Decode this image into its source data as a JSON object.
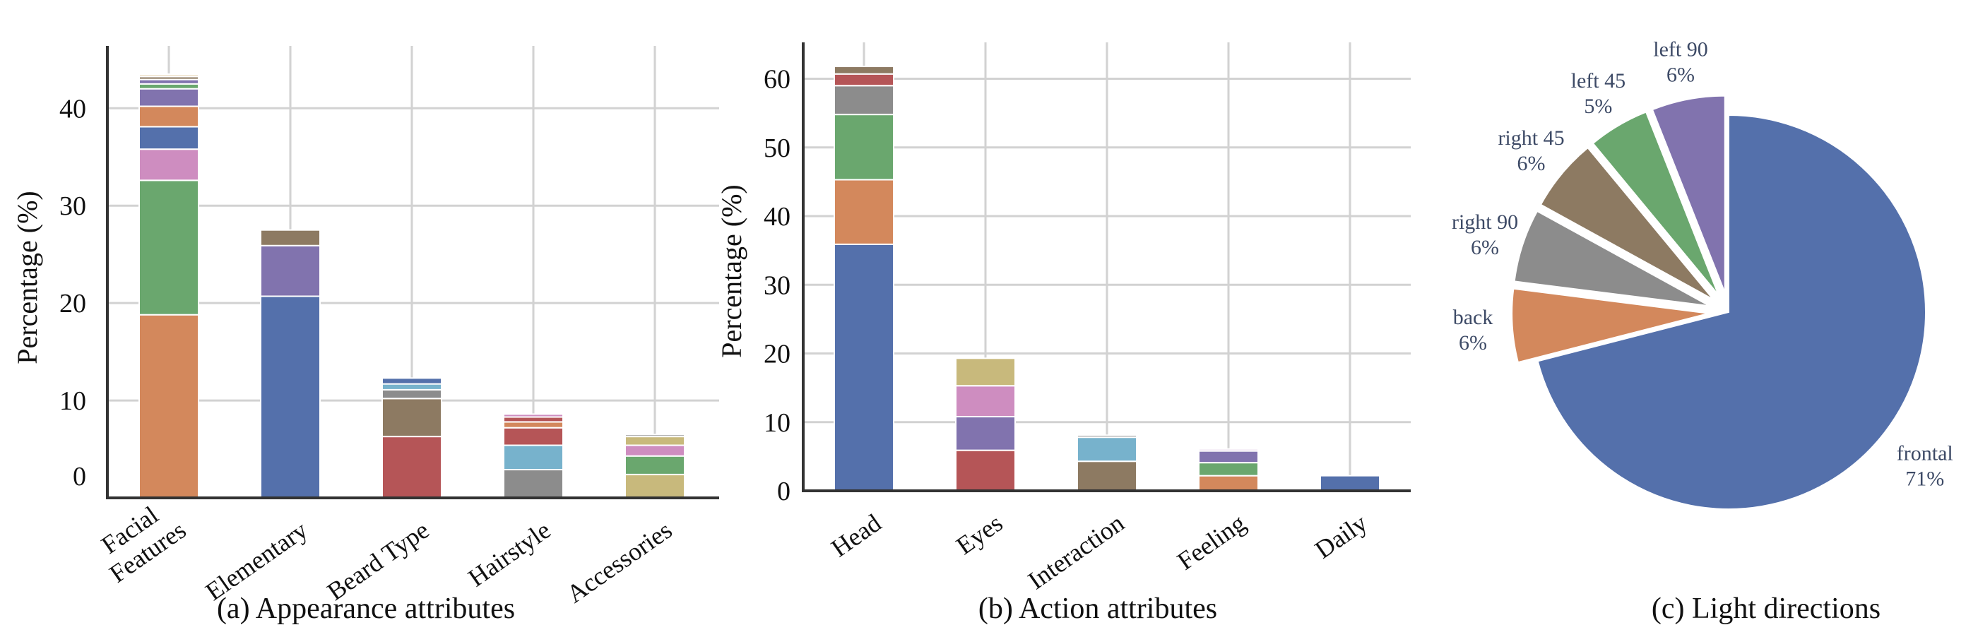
{
  "palette": {
    "blue": "#5470AB",
    "orange": "#D3885C",
    "green": "#6AA76E",
    "red": "#B55557",
    "purple": "#8173AE",
    "brown": "#8D7A62",
    "pink": "#CE8DC0",
    "gray": "#8C8C8C",
    "khaki": "#C8B97C",
    "cyan": "#77B2CC",
    "cream": "#EFE3CC",
    "lightpink": "#E6D3EA"
  },
  "chart_data": [
    {
      "type": "bar",
      "stacked": true,
      "caption": "(a) Appearance attributes",
      "ylabel": "Percentage (%)",
      "ylim": [
        0,
        46.4
      ],
      "yticks": [
        0,
        10,
        20,
        30,
        40
      ],
      "grid": true,
      "categories": [
        [
          "Facial",
          "Features"
        ],
        [
          "Elementary"
        ],
        [
          "Beard Type"
        ],
        [
          "Hairstyle"
        ],
        [
          "Accessories"
        ]
      ],
      "stacks": [
        [
          {
            "value": 18.8,
            "color": "orange"
          },
          {
            "value": 13.8,
            "color": "green"
          },
          {
            "value": 3.2,
            "color": "pink"
          },
          {
            "value": 2.3,
            "color": "blue"
          },
          {
            "value": 2.1,
            "color": "orange"
          },
          {
            "value": 1.8,
            "color": "purple"
          },
          {
            "value": 0.5,
            "color": "green"
          },
          {
            "value": 0.45,
            "color": "purple"
          },
          {
            "value": 0.3,
            "color": "brown"
          },
          {
            "value": 0.25,
            "color": "cream"
          }
        ],
        [
          {
            "value": 20.7,
            "color": "blue"
          },
          {
            "value": 5.2,
            "color": "purple"
          },
          {
            "value": 1.6,
            "color": "brown"
          }
        ],
        [
          {
            "value": 6.3,
            "color": "red"
          },
          {
            "value": 3.9,
            "color": "brown"
          },
          {
            "value": 0.9,
            "color": "gray"
          },
          {
            "value": 0.6,
            "color": "cyan"
          },
          {
            "value": 0.6,
            "color": "blue"
          }
        ],
        [
          {
            "value": 2.9,
            "color": "gray"
          },
          {
            "value": 2.5,
            "color": "cyan"
          },
          {
            "value": 1.8,
            "color": "red"
          },
          {
            "value": 0.6,
            "color": "orange"
          },
          {
            "value": 0.5,
            "color": "red"
          },
          {
            "value": 0.3,
            "color": "pink"
          }
        ],
        [
          {
            "value": 2.4,
            "color": "khaki"
          },
          {
            "value": 1.9,
            "color": "green"
          },
          {
            "value": 1.1,
            "color": "pink"
          },
          {
            "value": 0.9,
            "color": "khaki"
          },
          {
            "value": 0.2,
            "color": "gray"
          }
        ]
      ]
    },
    {
      "type": "bar",
      "stacked": true,
      "caption": "(b) Action attributes",
      "ylabel": "Percentage (%)",
      "ylim": [
        0,
        65.3
      ],
      "yticks": [
        0,
        10,
        20,
        30,
        40,
        50,
        60
      ],
      "grid": true,
      "categories": [
        [
          "Head"
        ],
        [
          "Eyes"
        ],
        [
          "Interaction"
        ],
        [
          "Feeling"
        ],
        [
          "Daily"
        ]
      ],
      "stacks": [
        [
          {
            "value": 35.9,
            "color": "blue"
          },
          {
            "value": 9.4,
            "color": "orange"
          },
          {
            "value": 9.5,
            "color": "green"
          },
          {
            "value": 4.2,
            "color": "gray"
          },
          {
            "value": 1.7,
            "color": "red"
          },
          {
            "value": 1.1,
            "color": "brown"
          }
        ],
        [
          {
            "value": 5.9,
            "color": "red"
          },
          {
            "value": 4.9,
            "color": "purple"
          },
          {
            "value": 4.5,
            "color": "pink"
          },
          {
            "value": 4.0,
            "color": "khaki"
          }
        ],
        [
          {
            "value": 4.3,
            "color": "brown"
          },
          {
            "value": 3.5,
            "color": "cyan"
          },
          {
            "value": 0.3,
            "color": "gray"
          }
        ],
        [
          {
            "value": 2.2,
            "color": "orange"
          },
          {
            "value": 1.9,
            "color": "green"
          },
          {
            "value": 1.7,
            "color": "purple"
          },
          {
            "value": 0.3,
            "color": "lightpink"
          }
        ],
        [
          {
            "value": 2.2,
            "color": "blue"
          }
        ]
      ]
    },
    {
      "type": "pie",
      "caption": "(c) Light directions",
      "slices": [
        {
          "label": "frontal",
          "pct_label": "71%",
          "value": 71,
          "color": "blue",
          "explode": false
        },
        {
          "label": "back",
          "pct_label": "6%",
          "value": 6,
          "color": "orange",
          "explode": true
        },
        {
          "label": "right 90",
          "pct_label": "6%",
          "value": 6,
          "color": "gray",
          "explode": true
        },
        {
          "label": "right 45",
          "pct_label": "6%",
          "value": 6,
          "color": "brown",
          "explode": true
        },
        {
          "label": "left 45",
          "pct_label": "5%",
          "value": 5,
          "color": "green",
          "explode": true
        },
        {
          "label": "left 90",
          "pct_label": "6%",
          "value": 6,
          "color": "purple",
          "explode": true
        }
      ]
    }
  ]
}
